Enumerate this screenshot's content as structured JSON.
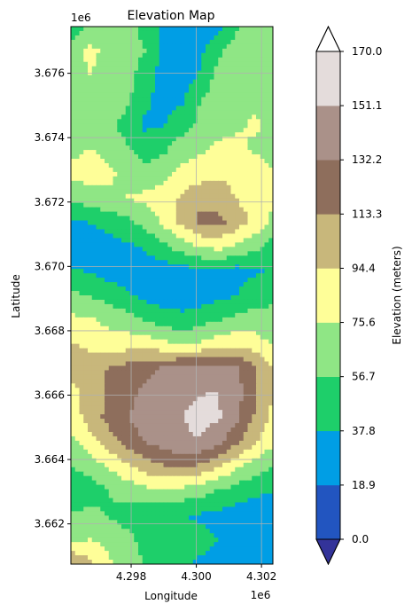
{
  "chart_data": {
    "type": "heatmap",
    "title": "Elevation Map",
    "xlabel": "Longitude",
    "ylabel": "Latitude",
    "x_offset_label": "1e6",
    "y_offset_label": "1e6",
    "xlim": [
      4.29615,
      4.30235
    ],
    "ylim": [
      3.66075,
      3.67745
    ],
    "x_ticks": [
      4.298,
      4.3,
      4.302
    ],
    "x_tick_labels": [
      "4.298",
      "4.300",
      "4.302"
    ],
    "y_ticks": [
      3.662,
      3.664,
      3.666,
      3.668,
      3.67,
      3.672,
      3.674,
      3.676
    ],
    "y_tick_labels": [
      "3.662",
      "3.664",
      "3.666",
      "3.668",
      "3.670",
      "3.672",
      "3.674",
      "3.676"
    ],
    "grid": true,
    "colorbar": {
      "label": "Elevation (meters)",
      "levels": [
        0.0,
        18.9,
        37.8,
        56.7,
        75.6,
        94.4,
        113.3,
        132.2,
        151.1,
        170.0
      ],
      "tick_labels": [
        "0.0",
        "18.9",
        "37.8",
        "56.7",
        "75.6",
        "94.4",
        "113.3",
        "132.2",
        "151.1",
        "170.0"
      ],
      "band_colors": [
        "#2255c0",
        "#009ee5",
        "#1ecf6a",
        "#8fe685",
        "#fefe98",
        "#c8b77b",
        "#8e6e5c",
        "#aa9189",
        "#e4dcdb"
      ],
      "under_color": "#333399",
      "over_color": "#ffffff",
      "extend": "both"
    },
    "elevation_grid": {
      "rows_top_to_bottom": true,
      "units": "meters",
      "values": [
        [
          45,
          62,
          66,
          63,
          52,
          34,
          30,
          27,
          32,
          54,
          64,
          58
        ],
        [
          65,
          80,
          72,
          66,
          57,
          35,
          26,
          32,
          52,
          66,
          70,
          62
        ],
        [
          63,
          76,
          70,
          64,
          48,
          30,
          24,
          40,
          62,
          68,
          70,
          63
        ],
        [
          62,
          66,
          68,
          62,
          42,
          32,
          34,
          56,
          66,
          70,
          74,
          70
        ],
        [
          58,
          60,
          62,
          50,
          34,
          36,
          48,
          60,
          68,
          74,
          77,
          74
        ],
        [
          70,
          76,
          70,
          60,
          48,
          52,
          66,
          72,
          80,
          78,
          74,
          70
        ],
        [
          82,
          84,
          80,
          70,
          62,
          70,
          80,
          84,
          92,
          88,
          82,
          76
        ],
        [
          62,
          66,
          72,
          76,
          80,
          84,
          96,
          110,
          104,
          94,
          86,
          76
        ],
        [
          34,
          38,
          44,
          52,
          62,
          78,
          100,
          116,
          120,
          104,
          90,
          72
        ],
        [
          28,
          28,
          30,
          34,
          40,
          52,
          66,
          76,
          82,
          74,
          62,
          48
        ],
        [
          40,
          36,
          30,
          28,
          26,
          28,
          30,
          34,
          34,
          30,
          36,
          40
        ],
        [
          60,
          56,
          50,
          40,
          32,
          28,
          26,
          28,
          32,
          38,
          46,
          52
        ],
        [
          80,
          78,
          72,
          66,
          56,
          48,
          44,
          48,
          56,
          62,
          66,
          64
        ],
        [
          96,
          90,
          82,
          86,
          88,
          80,
          74,
          78,
          86,
          90,
          84,
          74
        ],
        [
          104,
          106,
          114,
          120,
          128,
          134,
          138,
          142,
          144,
          136,
          116,
          96
        ],
        [
          88,
          100,
          114,
          126,
          136,
          142,
          148,
          150,
          152,
          140,
          118,
          94
        ],
        [
          84,
          102,
          118,
          130,
          142,
          146,
          150,
          156,
          154,
          136,
          112,
          90
        ],
        [
          70,
          86,
          104,
          120,
          132,
          140,
          148,
          150,
          138,
          118,
          96,
          80
        ],
        [
          56,
          64,
          76,
          90,
          104,
          112,
          116,
          110,
          96,
          80,
          66,
          58
        ],
        [
          42,
          48,
          56,
          64,
          70,
          72,
          70,
          64,
          56,
          48,
          42,
          38
        ],
        [
          58,
          62,
          56,
          50,
          46,
          40,
          38,
          36,
          34,
          30,
          28,
          26
        ],
        [
          72,
          76,
          70,
          62,
          52,
          50,
          46,
          42,
          38,
          32,
          30,
          28
        ],
        [
          116,
          98,
          80,
          66,
          56,
          48,
          40,
          36,
          32,
          28,
          26,
          24
        ]
      ]
    }
  }
}
